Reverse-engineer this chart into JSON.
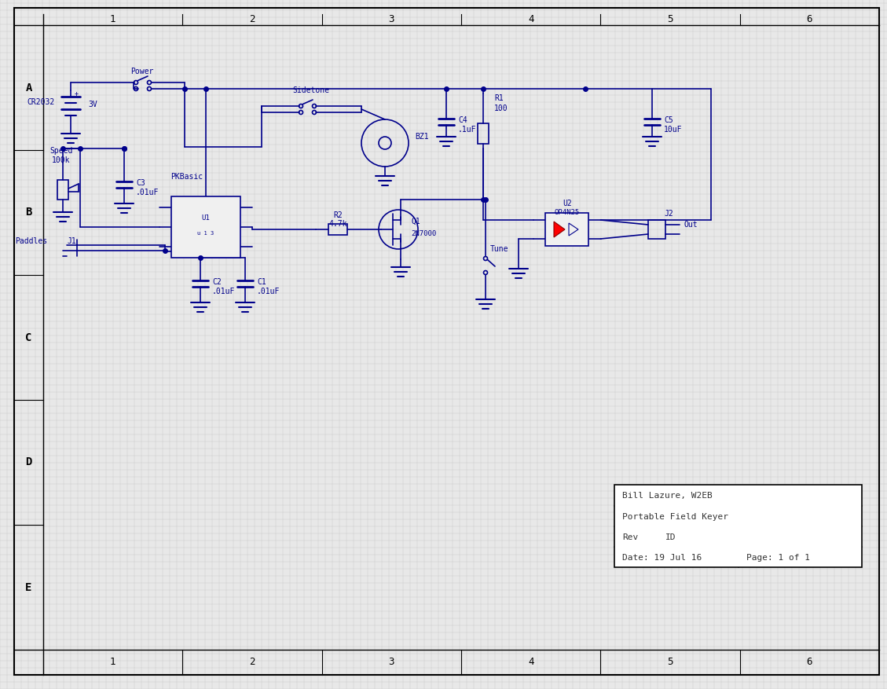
{
  "bg_color": "#e8e8e8",
  "grid_color": "#c8c8c8",
  "line_color": "#00008B",
  "border_color": "#000000",
  "text_color": "#00008B",
  "title_box": {
    "author": "Bill Lazure, W2EB",
    "project": "Portable Field Keyer",
    "rev_label": "Rev",
    "id_label": "ID",
    "date": "Date: 19 Jul 16",
    "page": "Page: 1 of 1"
  },
  "col_labels": [
    "1",
    "2",
    "3",
    "4",
    "5",
    "6"
  ],
  "row_labels": [
    "A",
    "B",
    "C",
    "D",
    "E"
  ],
  "figsize": [
    11.29,
    8.77
  ],
  "dpi": 100
}
